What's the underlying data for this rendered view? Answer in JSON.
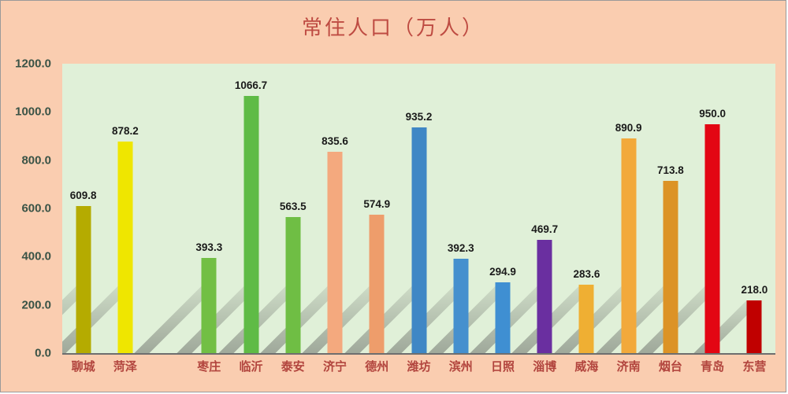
{
  "chart": {
    "background_color": "#FACDB0",
    "plot_background_color": "#E0F0D8",
    "title_color": "#BE4B42",
    "x_label_color": "#B2453E",
    "y_label_color": "#3A5346",
    "value_label_color": "#1a1a1a"
  },
  "chart_data": {
    "type": "bar",
    "title": "常住人口（万人）",
    "xlabel": "",
    "ylabel": "",
    "ylim": [
      0,
      1200
    ],
    "ytick_interval": 200,
    "yticks": [
      "1200.0",
      "1000.0",
      "800.0",
      "600.0",
      "400.0",
      "200.0",
      "0.0"
    ],
    "grid": false,
    "legend": "none",
    "empty_slot_after_index": 1,
    "categories": [
      "聊城",
      "菏泽",
      "枣庄",
      "临沂",
      "泰安",
      "济宁",
      "德州",
      "潍坊",
      "滨州",
      "日照",
      "淄博",
      "威海",
      "济南",
      "烟台",
      "青岛",
      "东营"
    ],
    "values": [
      609.8,
      878.2,
      393.3,
      1066.7,
      563.5,
      835.6,
      574.9,
      935.2,
      392.3,
      294.9,
      469.7,
      283.6,
      890.9,
      713.8,
      950.0,
      218.0
    ],
    "value_labels": [
      "609.8",
      "878.2",
      "393.3",
      "1066.7",
      "563.5",
      "835.6",
      "574.9",
      "935.2",
      "392.3",
      "294.9",
      "469.7",
      "283.6",
      "890.9",
      "713.8",
      "950.0",
      "218.0"
    ],
    "bar_colors": [
      "#B5AB00",
      "#EFE600",
      "#72BF44",
      "#5FBB46",
      "#6FBE44",
      "#F4A97E",
      "#EE9D6B",
      "#3F87C5",
      "#4590CE",
      "#3F8FD2",
      "#6A2FA0",
      "#EFAF33",
      "#F2A93B",
      "#DC9326",
      "#E30613",
      "#C00000"
    ]
  }
}
